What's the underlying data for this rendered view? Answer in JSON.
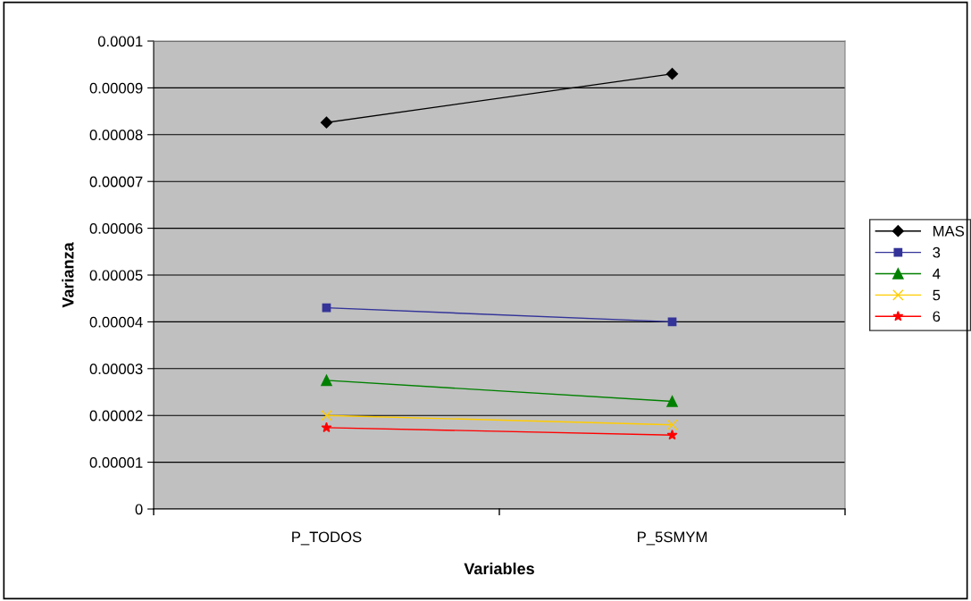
{
  "chart_data": {
    "type": "line",
    "xlabel": "Variables",
    "ylabel": "Varianza",
    "categories": [
      "P_TODOS",
      "P_5SMYM"
    ],
    "series": [
      {
        "name": "MAS",
        "color": "#000000",
        "marker": "diamond",
        "values": [
          8.26e-05,
          9.3e-05
        ]
      },
      {
        "name": "3",
        "color": "#333399",
        "marker": "square",
        "values": [
          4.3e-05,
          4e-05
        ]
      },
      {
        "name": "4",
        "color": "#008000",
        "marker": "triangle",
        "values": [
          2.75e-05,
          2.3e-05
        ]
      },
      {
        "name": "5",
        "color": "#ffcc00",
        "marker": "cross",
        "values": [
          2e-05,
          1.8e-05
        ]
      },
      {
        "name": "6",
        "color": "#ff0000",
        "marker": "star",
        "values": [
          1.74e-05,
          1.58e-05
        ]
      }
    ],
    "ylim": [
      0,
      0.0001
    ],
    "yticks": [
      0,
      {
        "value": 1e-05,
        "label": "0.00001"
      },
      {
        "value": 2e-05,
        "label": "0.00002"
      },
      {
        "value": 3e-05,
        "label": "0.00003"
      },
      {
        "value": 4e-05,
        "label": "0.00004"
      },
      {
        "value": 5e-05,
        "label": "0.00005"
      },
      {
        "value": 6e-05,
        "label": "0.00006"
      },
      {
        "value": 7e-05,
        "label": "0.00007"
      },
      {
        "value": 8e-05,
        "label": "0.00008"
      },
      {
        "value": 9e-05,
        "label": "0.00009"
      },
      {
        "value": 0.0001,
        "label": "0.0001"
      }
    ],
    "grid": "y",
    "legend": "right",
    "line_style": "solid"
  }
}
